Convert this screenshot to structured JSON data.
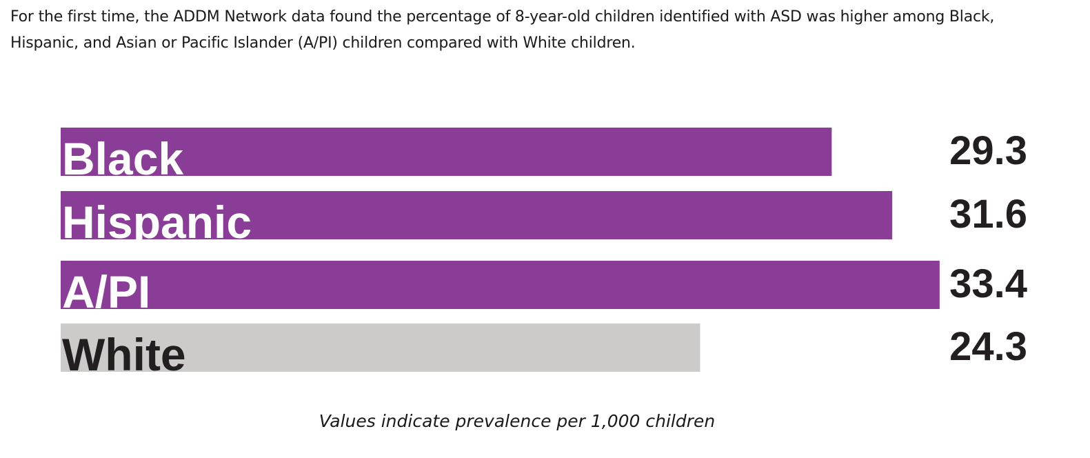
{
  "intro_text": "For the first time, the ADDM Network data found the percentage of 8-year-old children identified with ASD was higher among Black, Hispanic, and Asian or Pacific Islander (A/PI) children compared with White children.",
  "footnote": "Values indicate prevalence per 1,000 children",
  "colors": {
    "highlight": "#8a3d96",
    "reference": "#cccbca",
    "label_on_highlight": "#ffffff",
    "label_on_reference": "#231f20"
  },
  "chart_data": {
    "type": "bar",
    "orientation": "horizontal",
    "title": "",
    "xlabel": "",
    "ylabel": "",
    "categories": [
      "Black",
      "Hispanic",
      "A/PI",
      "White"
    ],
    "values": [
      29.3,
      31.6,
      33.4,
      24.3
    ],
    "value_labels": [
      "29.3",
      "31.6",
      "33.4",
      "24.3"
    ],
    "bar_colors": [
      "#8a3d96",
      "#8a3d96",
      "#8a3d96",
      "#cccbca"
    ],
    "label_colors": [
      "#ffffff",
      "#ffffff",
      "#ffffff",
      "#231f20"
    ],
    "grid": false,
    "legend": "none"
  }
}
